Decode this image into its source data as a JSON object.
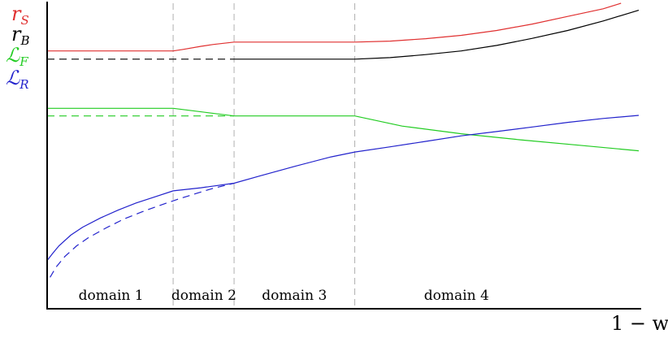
{
  "chart_data": {
    "type": "line",
    "title": "",
    "xlabel": "1 − w",
    "ylabel": "",
    "xlim": [
      0,
      100
    ],
    "ylim": [
      0,
      100
    ],
    "grid": false,
    "legend_placement": "top-left",
    "legend": [
      {
        "main": "r",
        "sub": "S",
        "color": "#e03030"
      },
      {
        "main": "r",
        "sub": "B",
        "color": "#000000"
      },
      {
        "main": "ℒ",
        "sub": "F",
        "color": "#22cc22"
      },
      {
        "main": "ℒ",
        "sub": "R",
        "color": "#2222cc"
      }
    ],
    "domain_boundaries": [
      21.3,
      31.6,
      52.0
    ],
    "domains": [
      {
        "label": "domain 1",
        "x": 10.8
      },
      {
        "label": "domain 2",
        "x": 26.5
      },
      {
        "label": "domain 3",
        "x": 41.8
      },
      {
        "label": "domain 4",
        "x": 69.2
      }
    ],
    "series": [
      {
        "key": "rS",
        "color": "#e03030",
        "dash": false,
        "points": [
          [
            0,
            84.4
          ],
          [
            21.3,
            84.4
          ],
          [
            23,
            84.9
          ],
          [
            26,
            85.9
          ],
          [
            28,
            86.5
          ],
          [
            31.6,
            87.3
          ],
          [
            52,
            87.3
          ],
          [
            58,
            87.6
          ],
          [
            64,
            88.4
          ],
          [
            70,
            89.5
          ],
          [
            76,
            91.1
          ],
          [
            82,
            93.2
          ],
          [
            88,
            95.7
          ],
          [
            94,
            98.2
          ],
          [
            97,
            100
          ]
        ]
      },
      {
        "key": "rB",
        "color": "#000000",
        "dash": false,
        "points": [
          [
            31.6,
            81.7
          ],
          [
            52,
            81.7
          ],
          [
            58,
            82.2
          ],
          [
            64,
            83.2
          ],
          [
            70,
            84.4
          ],
          [
            76,
            86.2
          ],
          [
            82,
            88.5
          ],
          [
            88,
            91.1
          ],
          [
            94,
            94.2
          ],
          [
            100,
            97.7
          ]
        ]
      },
      {
        "key": "rB_dashed",
        "color": "#000000",
        "dash": true,
        "points": [
          [
            0,
            81.7
          ],
          [
            31.6,
            81.7
          ]
        ]
      },
      {
        "key": "LF",
        "color": "#22cc22",
        "dash": false,
        "points": [
          [
            0,
            65.6
          ],
          [
            21.3,
            65.6
          ],
          [
            31.6,
            63.1
          ],
          [
            52,
            63.1
          ],
          [
            60,
            59.8
          ],
          [
            70,
            57.3
          ],
          [
            80,
            55.3
          ],
          [
            90,
            53.5
          ],
          [
            100,
            51.7
          ]
        ]
      },
      {
        "key": "LF_dashed",
        "color": "#22cc22",
        "dash": true,
        "points": [
          [
            0,
            63.1
          ],
          [
            31.6,
            63.1
          ]
        ]
      },
      {
        "key": "LR",
        "color": "#2222cc",
        "dash": false,
        "points": [
          [
            0,
            15.8
          ],
          [
            1,
            18.3
          ],
          [
            2,
            20.6
          ],
          [
            4,
            24.1
          ],
          [
            6,
            26.7
          ],
          [
            9,
            29.7
          ],
          [
            12,
            32.3
          ],
          [
            15,
            34.6
          ],
          [
            18,
            36.5
          ],
          [
            21.3,
            38.6
          ],
          [
            26,
            39.6
          ],
          [
            31.6,
            41.1
          ],
          [
            36,
            43.5
          ],
          [
            42,
            46.7
          ],
          [
            48,
            49.7
          ],
          [
            52,
            51.3
          ],
          [
            58,
            53.0
          ],
          [
            64,
            54.8
          ],
          [
            70,
            56.6
          ],
          [
            76,
            58.0
          ],
          [
            82,
            59.5
          ],
          [
            88,
            61.0
          ],
          [
            94,
            62.3
          ],
          [
            100,
            63.3
          ]
        ]
      },
      {
        "key": "LR_dashed",
        "color": "#2222cc",
        "dash": true,
        "points": [
          [
            0.5,
            10.3
          ],
          [
            1.5,
            13.6
          ],
          [
            3,
            17.1
          ],
          [
            5,
            20.6
          ],
          [
            7,
            23.3
          ],
          [
            10,
            26.5
          ],
          [
            13,
            29.4
          ],
          [
            16,
            31.7
          ],
          [
            19,
            33.8
          ],
          [
            22,
            35.8
          ],
          [
            25,
            37.6
          ],
          [
            28,
            39.4
          ],
          [
            31.6,
            41.1
          ]
        ]
      }
    ]
  }
}
